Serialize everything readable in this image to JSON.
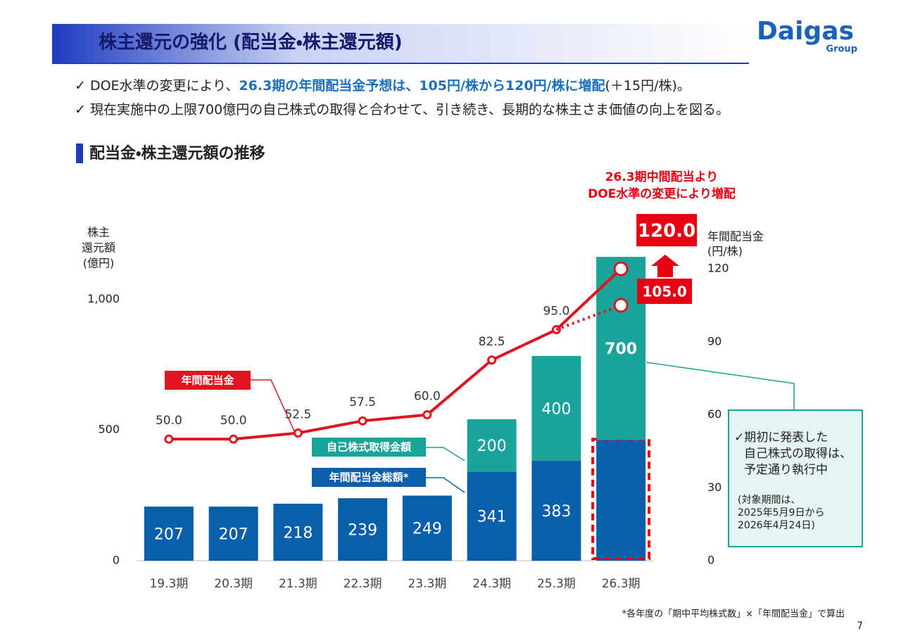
{
  "header": {
    "title": "株主還元の強化 (配当金・株主還元額)",
    "logo": "Daigas",
    "logo_sub": "Group"
  },
  "bullets": [
    [
      "✓ DOE水準の変更により、",
      "26.3期の年間配当金予想は、105円/株から120円/株に増配",
      "(＋15円/株)。"
    ],
    [
      "✓ 現在実施中の上限700億円の自己株式の取得と合わせて、引き続き、長期的な株主さま価値の向上を図る。"
    ]
  ],
  "chart_data": {
    "type": "bar",
    "title": "配当金・株主還元額の推移",
    "y_label": [
      "株主",
      "還元額",
      "(億円)"
    ],
    "y2_label": [
      "年間配当金",
      "(円/株)"
    ],
    "categories": [
      "19.3期",
      "20.3期",
      "21.3期",
      "22.3期",
      "23.3期",
      "24.3期",
      "25.3期",
      "26.3期"
    ],
    "ylim": [
      0,
      1200
    ],
    "yticks": [
      0,
      500,
      {
        "value": 1000,
        "label": "1,000"
      }
    ],
    "y2lim": [
      0,
      129
    ],
    "y2ticks": [
      0,
      30,
      60,
      90,
      120
    ],
    "series": [
      {
        "name": "年間配当金総額*",
        "color": "#0a5fad",
        "kind": "bar",
        "values": [
          207,
          207,
          218,
          239,
          249,
          341,
          383,
          462
        ],
        "value_labels": [
          "207",
          "207",
          "218",
          "239",
          "249",
          "341",
          "383",
          null
        ]
      },
      {
        "name": "自己株式取得金額",
        "color": "#1aa39a",
        "kind": "bar",
        "values": [
          null,
          null,
          null,
          null,
          null,
          200,
          400,
          700
        ]
      },
      {
        "name": "年間配当金",
        "color": "#e0141e",
        "kind": "line",
        "axis": "y2",
        "values": [
          50,
          50,
          52.5,
          57.5,
          60,
          82.5,
          95,
          120
        ],
        "value_labels": [
          "50.0",
          "50.0",
          "52.5",
          "57.5",
          "60.0",
          "82.5",
          "95.0",
          "120.0"
        ]
      },
      {
        "color": "#e0141e",
        "kind": "line",
        "axis": "y2",
        "line_style": "dotted",
        "values": [
          null,
          null,
          null,
          null,
          null,
          null,
          95,
          105
        ],
        "value_labels": [
          null,
          null,
          null,
          null,
          null,
          null,
          null,
          "105.0"
        ]
      }
    ],
    "annotation": [
      "26.3期中間配当より",
      "DOE水準の変更により増配"
    ],
    "note_box": [
      "✓期初に発表した",
      "自己株式の取得は、",
      "予定通り執行中",
      "(対象期間は、",
      "2025年5月9日から",
      "2026年4月24日)"
    ]
  },
  "footnote": "*各年度の「期中平均株式数」×「年間配当金」で算出",
  "page_number": "7"
}
